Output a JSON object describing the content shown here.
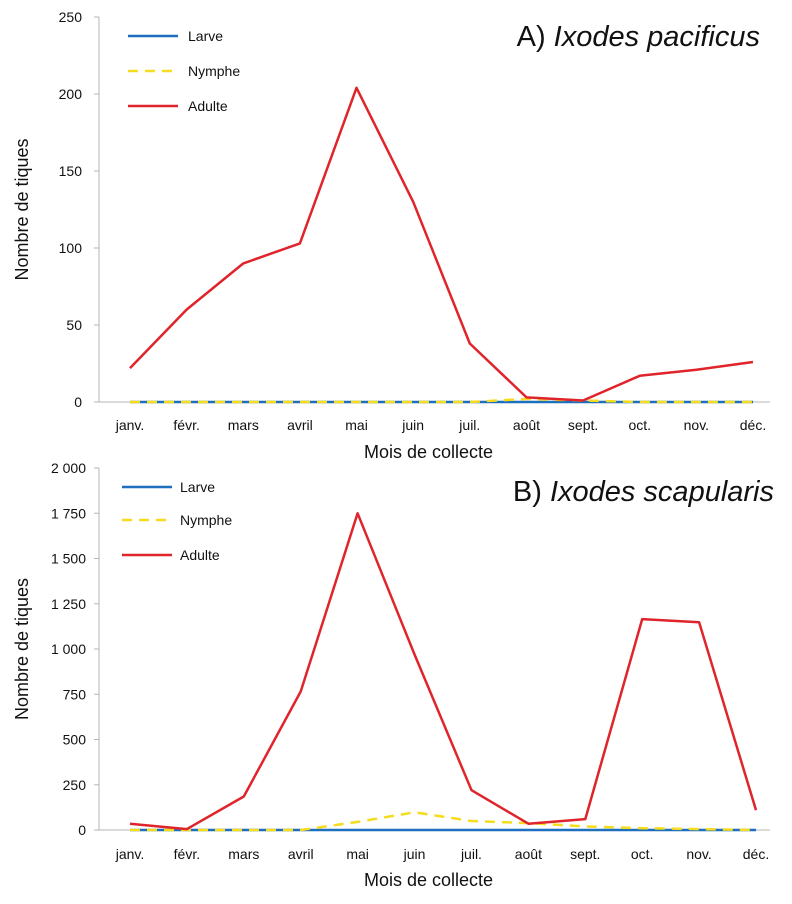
{
  "chart_data": [
    {
      "type": "line",
      "title_label": "A)",
      "title_species": "Ixodes pacificus",
      "xlabel": "Mois de collecte",
      "ylabel": "Nombre de tiques",
      "ylim": [
        0,
        250
      ],
      "yticks": [
        "0",
        "50",
        "100",
        "150",
        "200",
        "250"
      ],
      "categories": [
        "janv.",
        "févr.",
        "mars",
        "avril",
        "mai",
        "juin",
        "juil.",
        "août",
        "sept.",
        "oct.",
        "nov.",
        "déc."
      ],
      "series": [
        {
          "name": "Larve",
          "color": "#1f6fbf",
          "style": "solid",
          "values": [
            0,
            0,
            0,
            0,
            0,
            0,
            0,
            0,
            0,
            0,
            0,
            0
          ]
        },
        {
          "name": "Nymphe",
          "color": "#f5dc1e",
          "style": "dashed",
          "values": [
            0,
            0,
            0,
            0,
            0,
            0,
            0,
            2,
            1,
            0,
            0,
            0
          ]
        },
        {
          "name": "Adulte",
          "color": "#e0242b",
          "style": "solid",
          "values": [
            22,
            60,
            90,
            103,
            204,
            130,
            38,
            3,
            1,
            17,
            21,
            26
          ]
        }
      ]
    },
    {
      "type": "line",
      "title_label": "B)",
      "title_species": "Ixodes scapularis",
      "xlabel": "Mois de collecte",
      "ylabel": "Nombre de tiques",
      "ylim": [
        0,
        2000
      ],
      "yticks": [
        "0",
        "250",
        "500",
        "750",
        "1 000",
        "1 250",
        "1 500",
        "1 750",
        "2 000"
      ],
      "categories": [
        "janv.",
        "févr.",
        "mars",
        "avril",
        "mai",
        "juin",
        "juil.",
        "août",
        "sept.",
        "oct.",
        "nov.",
        "déc."
      ],
      "series": [
        {
          "name": "Larve",
          "color": "#1f6fbf",
          "style": "solid",
          "values": [
            0,
            0,
            0,
            0,
            0,
            0,
            0,
            0,
            0,
            0,
            0,
            0
          ]
        },
        {
          "name": "Nymphe",
          "color": "#f5dc1e",
          "style": "dashed",
          "values": [
            0,
            0,
            0,
            0,
            45,
            98,
            50,
            38,
            20,
            10,
            5,
            0
          ]
        },
        {
          "name": "Adulte",
          "color": "#e0242b",
          "style": "solid",
          "values": [
            35,
            5,
            185,
            765,
            1750,
            970,
            220,
            35,
            60,
            1165,
            1148,
            110
          ]
        }
      ]
    }
  ]
}
